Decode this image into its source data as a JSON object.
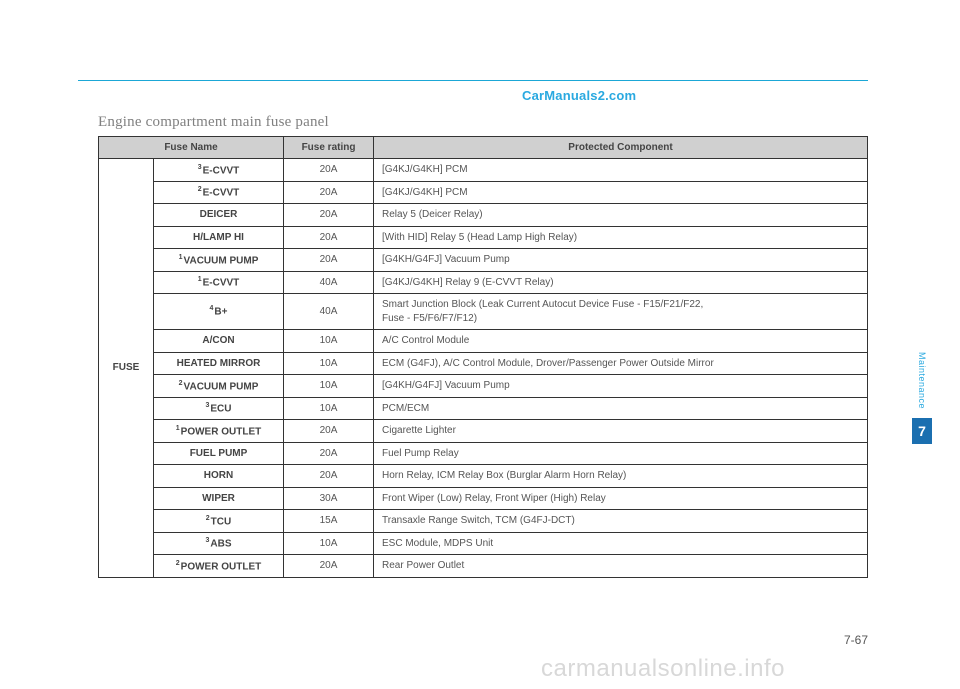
{
  "watermark_top": "CarManuals2.com",
  "title": "Engine compartment main fuse panel",
  "side_label": "FUSE",
  "columns": {
    "name": "Fuse Name",
    "rating": "Fuse rating",
    "component": "Protected Component"
  },
  "rows": [
    {
      "sup": "3",
      "name": "E-CVVT",
      "rating": "20A",
      "component": "[G4KJ/G4KH] PCM"
    },
    {
      "sup": "2",
      "name": "E-CVVT",
      "rating": "20A",
      "component": "[G4KJ/G4KH] PCM"
    },
    {
      "sup": "",
      "name": "DEICER",
      "rating": "20A",
      "component": "Relay 5 (Deicer Relay)"
    },
    {
      "sup": "",
      "name": "H/LAMP HI",
      "rating": "20A",
      "component": "[With HID] Relay 5 (Head Lamp High Relay)"
    },
    {
      "sup": "1",
      "name": "VACUUM PUMP",
      "rating": "20A",
      "component": "[G4KH/G4FJ] Vacuum Pump"
    },
    {
      "sup": "1",
      "name": "E-CVVT",
      "rating": "40A",
      "component": "[G4KJ/G4KH] Relay 9 (E-CVVT Relay)"
    },
    {
      "sup": "4",
      "name": "B+",
      "rating": "40A",
      "component": "Smart Junction Block (Leak Current Autocut Device Fuse - F15/F21/F22,\nFuse - F5/F6/F7/F12)"
    },
    {
      "sup": "",
      "name": "A/CON",
      "rating": "10A",
      "component": "A/C Control Module"
    },
    {
      "sup": "",
      "name": "HEATED MIRROR",
      "rating": "10A",
      "component": "ECM (G4FJ), A/C Control Module, Drover/Passenger Power Outside Mirror"
    },
    {
      "sup": "2",
      "name": "VACUUM PUMP",
      "rating": "10A",
      "component": "[G4KH/G4FJ] Vacuum Pump"
    },
    {
      "sup": "3",
      "name": "ECU",
      "rating": "10A",
      "component": "PCM/ECM"
    },
    {
      "sup": "1",
      "name": "POWER OUTLET",
      "rating": "20A",
      "component": "Cigarette Lighter"
    },
    {
      "sup": "",
      "name": "FUEL PUMP",
      "rating": "20A",
      "component": "Fuel Pump Relay"
    },
    {
      "sup": "",
      "name": "HORN",
      "rating": "20A",
      "component": "Horn Relay, ICM Relay Box (Burglar Alarm Horn Relay)"
    },
    {
      "sup": "",
      "name": "WIPER",
      "rating": "30A",
      "component": "Front Wiper (Low) Relay, Front Wiper (High) Relay"
    },
    {
      "sup": "2",
      "name": "TCU",
      "rating": "15A",
      "component": "Transaxle Range Switch, TCM (G4FJ-DCT)"
    },
    {
      "sup": "3",
      "name": "ABS",
      "rating": "10A",
      "component": "ESC Module, MDPS Unit"
    },
    {
      "sup": "2",
      "name": "POWER OUTLET",
      "rating": "20A",
      "component": "Rear Power Outlet"
    }
  ],
  "side_tab": {
    "label": "Maintenance",
    "number": "7"
  },
  "page_number": "7-67",
  "watermark_bottom": "carmanualsonline.info",
  "colors": {
    "accent": "#2aa9e0",
    "rule": "#1ba7d6",
    "header_bg": "#d0d0d0",
    "tab_bg": "#1b6fb0",
    "text": "#555",
    "wm_bottom": "#d8d8d8"
  }
}
